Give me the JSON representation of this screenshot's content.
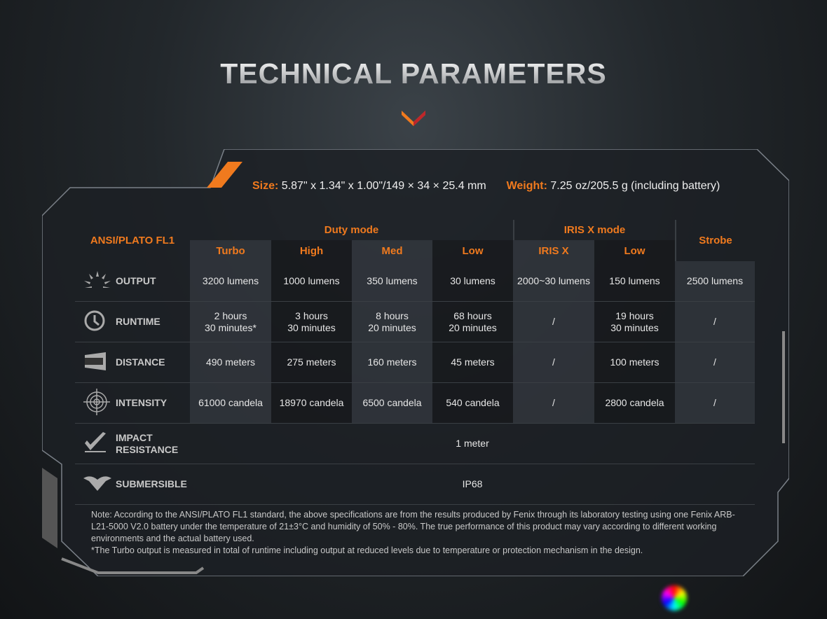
{
  "title": "TECHNICAL PARAMETERS",
  "size": {
    "label": "Size:",
    "value": "5.87\" x 1.34\" x 1.00\"/149 × 34 × 25.4 mm"
  },
  "weight": {
    "label": "Weight:",
    "value": "7.25 oz/205.5 g (including battery)"
  },
  "table": {
    "standard": "ANSI/PLATO FL1",
    "groups": [
      "Duty mode",
      "IRIS X mode",
      "Strobe"
    ],
    "modes": [
      "Turbo",
      "High",
      "Med",
      "Low",
      "IRIS X",
      "Low"
    ],
    "rows": [
      {
        "label": "OUTPUT",
        "icon": "sunburst-icon",
        "values": [
          "3200 lumens",
          "1000 lumens",
          "350 lumens",
          "30 lumens",
          "2000~30 lumens",
          "150 lumens",
          "2500 lumens"
        ]
      },
      {
        "label": "RUNTIME",
        "icon": "clock-icon",
        "values": [
          "2 hours\n30 minutes*",
          "3 hours\n30 minutes",
          "8 hours\n20 minutes",
          "68 hours\n20 minutes",
          "/",
          "19 hours\n30 minutes",
          "/"
        ]
      },
      {
        "label": "DISTANCE",
        "icon": "beam-distance-icon",
        "values": [
          "490 meters",
          "275 meters",
          "160 meters",
          "45 meters",
          "/",
          "100 meters",
          "/"
        ]
      },
      {
        "label": "INTENSITY",
        "icon": "target-icon",
        "values": [
          "61000 candela",
          "18970 candela",
          "6500 candela",
          "540 candela",
          "/",
          "2800 candela",
          "/"
        ]
      }
    ],
    "impact": {
      "label": "IMPACT\nRESISTANCE",
      "icon": "checkmark-impact-icon",
      "value": "1 meter"
    },
    "submersible": {
      "label": "SUBMERSIBLE",
      "icon": "water-icon",
      "value": "IP68"
    }
  },
  "note": "Note: According to the ANSI/PLATO FL1 standard, the above specifications are from the results produced by Fenix through its laboratory testing using one Fenix ARB-L21-5000 V2.0 battery under the temperature of 21±3°C and humidity of 50% - 80%. The true performance of this product may vary according to different working environments and the actual battery used.",
  "footnote": "*The Turbo output is measured in total of runtime including output at reduced levels due to temperature or protection mechanism in the design.",
  "colors": {
    "accent": "#f07a1e",
    "panel": "#1f2327"
  }
}
